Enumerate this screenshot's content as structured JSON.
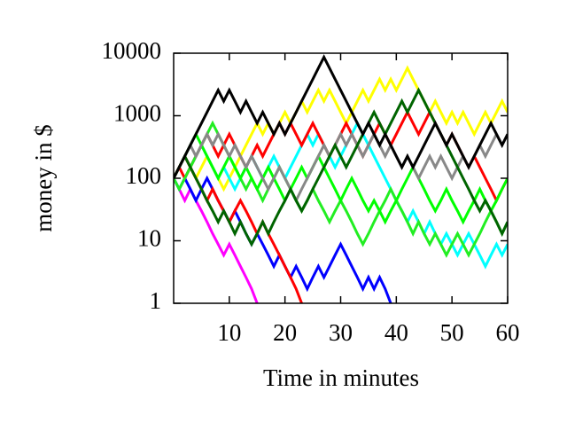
{
  "chart_data": {
    "type": "line",
    "xlabel": "Time in minutes",
    "ylabel": "money in $",
    "x": [
      0,
      1,
      2,
      3,
      4,
      5,
      6,
      7,
      8,
      9,
      10,
      11,
      12,
      13,
      14,
      15,
      16,
      17,
      18,
      19,
      20,
      21,
      22,
      23,
      24,
      25,
      26,
      27,
      28,
      29,
      30,
      31,
      32,
      33,
      34,
      35,
      36,
      37,
      38,
      39,
      40,
      41,
      42,
      43,
      44,
      45,
      46,
      47,
      48,
      49,
      50,
      51,
      52,
      53,
      54,
      55,
      56,
      57,
      58,
      59,
      60
    ],
    "xlim": [
      0,
      60
    ],
    "xticks": [
      10,
      20,
      30,
      40,
      50,
      60
    ],
    "ylim": [
      1,
      10000
    ],
    "yticks": [
      1,
      10,
      100,
      1000,
      10000
    ],
    "ylog": true,
    "series": [
      {
        "color": "#ffff00",
        "values": [
          100,
          67,
          100,
          150,
          100,
          150,
          225,
          150,
          100,
          67,
          100,
          150,
          225,
          338,
          506,
          759,
          506,
          759,
          506,
          759,
          1139,
          759,
          1139,
          1709,
          1139,
          1709,
          2563,
          1709,
          2563,
          1709,
          1139,
          759,
          1139,
          1709,
          2563,
          1709,
          2563,
          3844,
          2563,
          3844,
          2563,
          3844,
          5767,
          3844,
          2563,
          1709,
          1139,
          1709,
          1139,
          759,
          1139,
          759,
          1139,
          759,
          506,
          759,
          1139,
          759,
          1139,
          1709,
          1139
        ]
      },
      {
        "color": "#ff00ff",
        "values": [
          100,
          67,
          44,
          67,
          44,
          30,
          20,
          13,
          8.8,
          5.9,
          8.8,
          5.9,
          3.9,
          2.6,
          1.7,
          1,
          null,
          null,
          null,
          null,
          null,
          null,
          null,
          null,
          null,
          null,
          null,
          null,
          null,
          null,
          null,
          null,
          null,
          null,
          null,
          null,
          null,
          null,
          null,
          null,
          null,
          null,
          null,
          null,
          null,
          null,
          null,
          null,
          null,
          null,
          null,
          null,
          null,
          null,
          null,
          null,
          null,
          null,
          null,
          null,
          null
        ]
      },
      {
        "color": "#0000ff",
        "values": [
          100,
          67,
          100,
          67,
          44,
          67,
          100,
          67,
          44,
          30,
          20,
          30,
          20,
          13,
          8.8,
          13,
          8.8,
          5.9,
          3.9,
          5.9,
          3.9,
          2.6,
          3.9,
          2.6,
          1.7,
          2.6,
          3.9,
          2.6,
          3.9,
          5.9,
          8.8,
          5.9,
          3.9,
          2.6,
          1.7,
          2.6,
          1.7,
          2.6,
          1.7,
          1,
          null,
          null,
          null,
          null,
          null,
          null,
          null,
          null,
          null,
          null,
          null,
          null,
          null,
          null,
          null,
          null,
          null,
          null,
          null,
          null,
          null
        ]
      },
      {
        "color": "#ff0000",
        "values": [
          100,
          150,
          225,
          150,
          100,
          67,
          44,
          67,
          44,
          30,
          20,
          30,
          44,
          30,
          20,
          13,
          20,
          13,
          8.8,
          5.9,
          3.9,
          2.6,
          1.7,
          1,
          null,
          null,
          null,
          null,
          null,
          null,
          null,
          null,
          null,
          null,
          null,
          null,
          null,
          null,
          null,
          null,
          null,
          null,
          null,
          null,
          null,
          null,
          null,
          null,
          null,
          null,
          null,
          null,
          null,
          null,
          null,
          null,
          null,
          null,
          null,
          null,
          null
        ]
      },
      {
        "color": "#00ffff",
        "values": [
          100,
          67,
          100,
          150,
          225,
          338,
          225,
          150,
          100,
          150,
          100,
          67,
          100,
          150,
          225,
          150,
          100,
          150,
          225,
          150,
          100,
          150,
          225,
          338,
          506,
          338,
          506,
          338,
          225,
          150,
          225,
          338,
          506,
          759,
          506,
          338,
          225,
          150,
          100,
          67,
          44,
          30,
          20,
          30,
          20,
          13,
          20,
          13,
          8.8,
          13,
          8.8,
          5.9,
          8.8,
          13,
          8.8,
          5.9,
          3.9,
          5.9,
          8.8,
          5.9,
          8.8
        ]
      },
      {
        "color": "#ff0000",
        "values": [
          100,
          150,
          100,
          150,
          225,
          338,
          506,
          338,
          225,
          338,
          506,
          338,
          225,
          150,
          225,
          338,
          225,
          338,
          506,
          759,
          506,
          759,
          506,
          338,
          506,
          759,
          506,
          338,
          225,
          338,
          506,
          759,
          506,
          338,
          225,
          338,
          506,
          759,
          506,
          338,
          506,
          759,
          1139,
          759,
          506,
          759,
          1139,
          759,
          506,
          338,
          506,
          338,
          225,
          150,
          225,
          150,
          100,
          67,
          44,
          67,
          100
        ]
      },
      {
        "color": "#22ee22",
        "values": [
          100,
          67,
          100,
          150,
          225,
          338,
          506,
          759,
          506,
          338,
          225,
          150,
          100,
          67,
          100,
          67,
          44,
          67,
          100,
          150,
          100,
          67,
          44,
          30,
          44,
          67,
          44,
          30,
          20,
          30,
          44,
          30,
          20,
          13,
          8.8,
          13,
          20,
          30,
          44,
          67,
          44,
          30,
          20,
          13,
          20,
          13,
          8.8,
          13,
          8.8,
          5.9,
          8.8,
          13,
          8.8,
          5.9,
          8.8,
          13,
          20,
          30,
          20,
          13,
          20
        ]
      },
      {
        "color": "#00ff00",
        "values": [
          100,
          150,
          225,
          338,
          506,
          338,
          225,
          150,
          100,
          150,
          225,
          150,
          100,
          150,
          100,
          67,
          100,
          150,
          100,
          67,
          44,
          67,
          100,
          150,
          100,
          150,
          225,
          150,
          100,
          67,
          44,
          67,
          100,
          67,
          44,
          30,
          44,
          30,
          20,
          30,
          44,
          67,
          100,
          150,
          100,
          67,
          44,
          30,
          44,
          67,
          44,
          30,
          20,
          30,
          44,
          67,
          44,
          30,
          44,
          67,
          100
        ]
      },
      {
        "color": "#888888",
        "values": [
          100,
          150,
          225,
          338,
          225,
          338,
          506,
          338,
          506,
          338,
          225,
          338,
          225,
          150,
          225,
          150,
          100,
          67,
          100,
          150,
          100,
          67,
          44,
          67,
          100,
          150,
          225,
          338,
          225,
          338,
          506,
          338,
          506,
          338,
          225,
          338,
          506,
          338,
          225,
          338,
          225,
          150,
          225,
          150,
          100,
          150,
          225,
          150,
          225,
          150,
          100,
          150,
          225,
          150,
          225,
          338,
          225,
          338,
          506,
          338,
          506
        ]
      },
      {
        "color": "#006400",
        "values": [
          100,
          150,
          225,
          150,
          100,
          67,
          44,
          30,
          20,
          30,
          20,
          13,
          20,
          13,
          8.8,
          13,
          20,
          13,
          20,
          30,
          44,
          67,
          44,
          30,
          44,
          67,
          100,
          150,
          225,
          338,
          225,
          150,
          225,
          338,
          506,
          759,
          1139,
          759,
          506,
          759,
          1139,
          1709,
          1139,
          1709,
          2563,
          1709,
          1139,
          759,
          506,
          338,
          225,
          150,
          100,
          67,
          44,
          30,
          44,
          30,
          20,
          13,
          20
        ]
      },
      {
        "color": "#000000",
        "values": [
          100,
          150,
          225,
          338,
          506,
          759,
          1139,
          1709,
          2563,
          1709,
          2563,
          1709,
          1139,
          1709,
          1139,
          759,
          1139,
          759,
          506,
          759,
          506,
          759,
          1139,
          1709,
          2563,
          3844,
          5767,
          8650,
          5767,
          3844,
          2563,
          1709,
          1139,
          759,
          506,
          759,
          506,
          338,
          506,
          338,
          225,
          150,
          225,
          150,
          225,
          338,
          506,
          759,
          506,
          338,
          506,
          338,
          225,
          150,
          225,
          338,
          506,
          759,
          506,
          338,
          506
        ]
      }
    ]
  }
}
